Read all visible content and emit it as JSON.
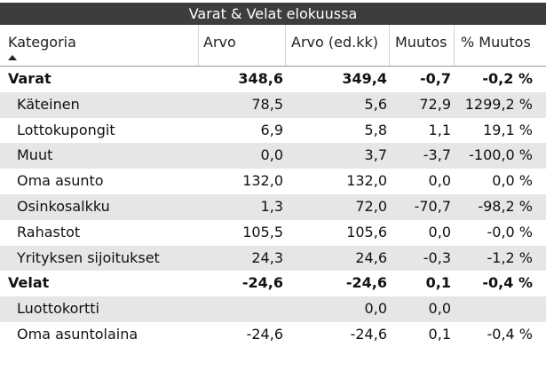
{
  "title": "Varat & Velat elokuussa",
  "columns": [
    "Kategoria",
    "Arvo",
    "Arvo (ed.kk)",
    "Muutos",
    "% Muutos"
  ],
  "sort_icon": "sort-ascending-icon",
  "rows": [
    {
      "label": "Varat",
      "arvo": "348,6",
      "arvo_ed": "349,4",
      "muutos": "-0,7",
      "pct": "-0,2 %"
    },
    {
      "label": "Käteinen",
      "arvo": "78,5",
      "arvo_ed": "5,6",
      "muutos": "72,9",
      "pct": "1299,2 %"
    },
    {
      "label": "Lottokupongit",
      "arvo": "6,9",
      "arvo_ed": "5,8",
      "muutos": "1,1",
      "pct": "19,1 %"
    },
    {
      "label": "Muut",
      "arvo": "0,0",
      "arvo_ed": "3,7",
      "muutos": "-3,7",
      "pct": "-100,0 %"
    },
    {
      "label": "Oma asunto",
      "arvo": "132,0",
      "arvo_ed": "132,0",
      "muutos": "0,0",
      "pct": "0,0 %"
    },
    {
      "label": "Osinkosalkku",
      "arvo": "1,3",
      "arvo_ed": "72,0",
      "muutos": "-70,7",
      "pct": "-98,2 %"
    },
    {
      "label": "Rahastot",
      "arvo": "105,5",
      "arvo_ed": "105,6",
      "muutos": "0,0",
      "pct": "-0,0 %"
    },
    {
      "label": "Yrityksen sijoitukset",
      "arvo": "24,3",
      "arvo_ed": "24,6",
      "muutos": "-0,3",
      "pct": "-1,2 %"
    },
    {
      "label": "Velat",
      "arvo": "-24,6",
      "arvo_ed": "-24,6",
      "muutos": "0,1",
      "pct": "-0,4 %"
    },
    {
      "label": "Luottokortti",
      "arvo": "",
      "arvo_ed": "0,0",
      "muutos": "0,0",
      "pct": ""
    },
    {
      "label": "Oma asuntolaina",
      "arvo": "-24,6",
      "arvo_ed": "-24,6",
      "muutos": "0,1",
      "pct": "-0,4 %"
    }
  ]
}
